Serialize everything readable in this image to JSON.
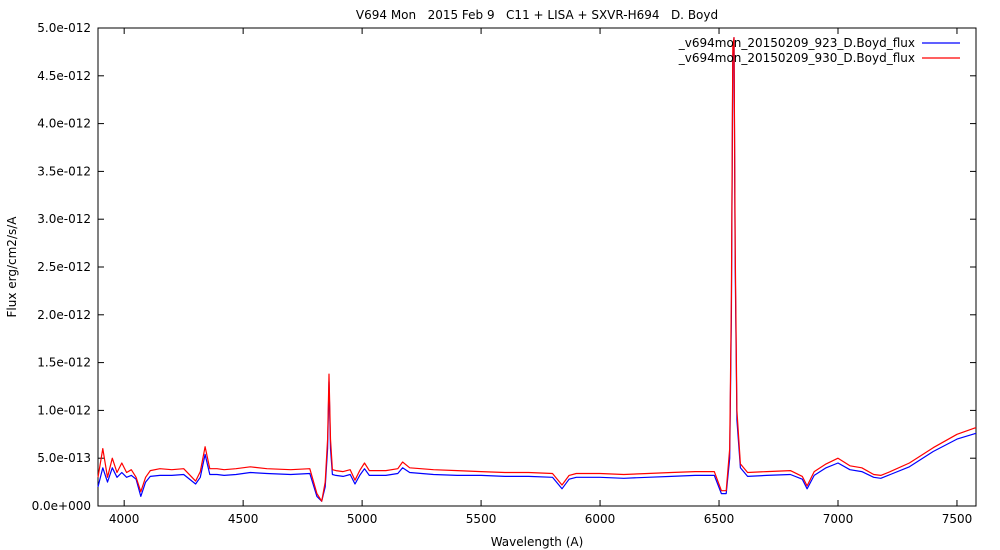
{
  "chart_data": {
    "type": "line",
    "title": "V694 Mon   2015 Feb 9   C11 + LISA + SXVR-H694   D. Boyd",
    "xlabel": "Wavelength (A)",
    "ylabel": "Flux erg/cm2/s/A",
    "xlim": [
      3890,
      7580
    ],
    "ylim": [
      0,
      5e-12
    ],
    "x_ticks": [
      4000,
      4500,
      5000,
      5500,
      6000,
      6500,
      7000,
      7500
    ],
    "x_tick_labels": [
      "4000",
      "4500",
      "5000",
      "5500",
      "6000",
      "6500",
      "7000",
      "7500"
    ],
    "y_ticks": [
      0,
      5e-13,
      1e-12,
      1.5e-12,
      2e-12,
      2.5e-12,
      3e-12,
      3.5e-12,
      4e-12,
      4.5e-12,
      5e-12
    ],
    "y_tick_labels": [
      "0.0e+000",
      "5.0e-013",
      "1.0e-012",
      "1.5e-012",
      "2.0e-012",
      "2.5e-012",
      "3.0e-012",
      "3.5e-012",
      "4.0e-012",
      "4.5e-012",
      "5.0e-012"
    ],
    "grid": false,
    "legend_position": "top-right",
    "series": [
      {
        "name": "_v694mon_20150209_923_D.Boyd_flux",
        "color": "#0000ff",
        "x": [
          3890,
          3910,
          3930,
          3950,
          3970,
          3990,
          4010,
          4030,
          4050,
          4070,
          4090,
          4110,
          4150,
          4200,
          4250,
          4300,
          4320,
          4340,
          4360,
          4390,
          4420,
          4470,
          4530,
          4600,
          4700,
          4780,
          4810,
          4830,
          4845,
          4855,
          4861,
          4867,
          4875,
          4890,
          4920,
          4950,
          4970,
          4990,
          5010,
          5030,
          5100,
          5150,
          5170,
          5200,
          5300,
          5400,
          5500,
          5600,
          5700,
          5800,
          5840,
          5870,
          5900,
          6000,
          6100,
          6200,
          6300,
          6400,
          6480,
          6510,
          6530,
          6545,
          6552,
          6558,
          6563,
          6568,
          6575,
          6590,
          6620,
          6700,
          6800,
          6850,
          6870,
          6900,
          6950,
          7000,
          7050,
          7100,
          7150,
          7180,
          7220,
          7300,
          7400,
          7500,
          7580
        ],
        "values": [
          2e-13,
          4e-13,
          2.5e-13,
          4e-13,
          3e-13,
          3.5e-13,
          3e-13,
          3.2e-13,
          2.8e-13,
          1e-13,
          2.5e-13,
          3.1e-13,
          3.2e-13,
          3.2e-13,
          3.3e-13,
          2.3e-13,
          3e-13,
          5.4e-13,
          3.3e-13,
          3.3e-13,
          3.2e-13,
          3.3e-13,
          3.5e-13,
          3.4e-13,
          3.3e-13,
          3.4e-13,
          1e-13,
          5e-14,
          2e-13,
          6e-13,
          1.3e-12,
          6e-13,
          3.3e-13,
          3.2e-13,
          3.1e-13,
          3.3e-13,
          2.3e-13,
          3.2e-13,
          3.9e-13,
          3.2e-13,
          3.2e-13,
          3.4e-13,
          4e-13,
          3.5e-13,
          3.3e-13,
          3.2e-13,
          3.2e-13,
          3.1e-13,
          3.1e-13,
          3e-13,
          1.8e-13,
          2.8e-13,
          3e-13,
          3e-13,
          2.9e-13,
          3e-13,
          3.1e-13,
          3.2e-13,
          3.2e-13,
          1.3e-13,
          1.3e-13,
          5e-13,
          2e-12,
          4.7e-12,
          4.9e-12,
          2.5e-12,
          9e-13,
          4e-13,
          3.1e-13,
          3.2e-13,
          3.3e-13,
          2.8e-13,
          1.8e-13,
          3.2e-13,
          4e-13,
          4.5e-13,
          3.8e-13,
          3.6e-13,
          3e-13,
          2.9e-13,
          3.3e-13,
          4.1e-13,
          5.7e-13,
          7e-13,
          7.6e-13
        ]
      },
      {
        "name": "_v694mon_20150209_930_D.Boyd_flux",
        "color": "#ff0000",
        "x": [
          3890,
          3910,
          3930,
          3950,
          3970,
          3990,
          4010,
          4030,
          4050,
          4070,
          4090,
          4110,
          4150,
          4200,
          4250,
          4300,
          4320,
          4340,
          4360,
          4390,
          4420,
          4470,
          4530,
          4600,
          4700,
          4780,
          4810,
          4830,
          4845,
          4855,
          4861,
          4867,
          4875,
          4890,
          4920,
          4950,
          4970,
          4990,
          5010,
          5030,
          5100,
          5150,
          5170,
          5200,
          5300,
          5400,
          5500,
          5600,
          5700,
          5800,
          5840,
          5870,
          5900,
          6000,
          6100,
          6200,
          6300,
          6400,
          6480,
          6510,
          6530,
          6545,
          6552,
          6558,
          6563,
          6568,
          6575,
          6590,
          6620,
          6700,
          6800,
          6850,
          6870,
          6900,
          6950,
          7000,
          7050,
          7100,
          7150,
          7180,
          7220,
          7300,
          7400,
          7500,
          7580
        ],
        "values": [
          3e-13,
          6e-13,
          3e-13,
          5e-13,
          3.5e-13,
          4.5e-13,
          3.5e-13,
          3.8e-13,
          3e-13,
          1.5e-13,
          3e-13,
          3.7e-13,
          3.9e-13,
          3.8e-13,
          3.9e-13,
          2.6e-13,
          3.6e-13,
          6.2e-13,
          3.9e-13,
          3.9e-13,
          3.8e-13,
          3.9e-13,
          4.1e-13,
          3.9e-13,
          3.8e-13,
          3.9e-13,
          1.3e-13,
          5e-14,
          2.5e-13,
          7e-13,
          1.38e-12,
          7e-13,
          3.8e-13,
          3.7e-13,
          3.6e-13,
          3.8e-13,
          2.7e-13,
          3.7e-13,
          4.5e-13,
          3.7e-13,
          3.7e-13,
          3.9e-13,
          4.6e-13,
          4e-13,
          3.8e-13,
          3.7e-13,
          3.6e-13,
          3.5e-13,
          3.5e-13,
          3.4e-13,
          2.2e-13,
          3.2e-13,
          3.4e-13,
          3.4e-13,
          3.3e-13,
          3.4e-13,
          3.5e-13,
          3.6e-13,
          3.6e-13,
          1.6e-13,
          1.6e-13,
          6e-13,
          2.2e-12,
          4.8e-12,
          4.9e-12,
          2.7e-12,
          1e-12,
          4.4e-13,
          3.5e-13,
          3.6e-13,
          3.7e-13,
          3.1e-13,
          2.1e-13,
          3.6e-13,
          4.4e-13,
          5e-13,
          4.2e-13,
          4e-13,
          3.3e-13,
          3.2e-13,
          3.6e-13,
          4.5e-13,
          6.1e-13,
          7.5e-13,
          8.2e-13
        ]
      }
    ]
  }
}
